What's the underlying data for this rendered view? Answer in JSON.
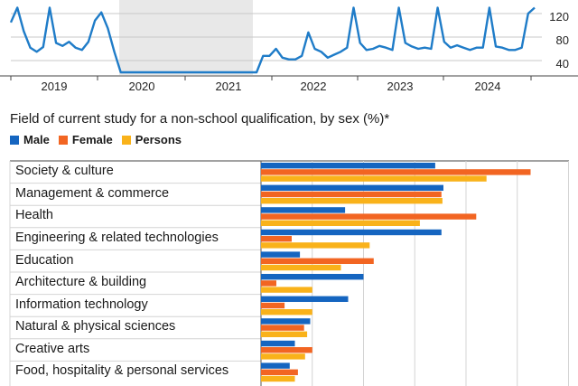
{
  "colors": {
    "male": "#1565c0",
    "female": "#f26522",
    "persons": "#f9b21a",
    "line": "#1f7cc8",
    "shade": "#e8e8e8"
  },
  "chart_data": [
    {
      "type": "line",
      "title": "",
      "x_ticks": [
        "2019",
        "2020",
        "2021",
        "2022",
        "2023",
        "2024"
      ],
      "y_ticks": [
        "40",
        "80",
        "120"
      ],
      "shaded_period": [
        "2020",
        "2021"
      ],
      "series": [
        {
          "values": [
            105,
            130,
            90,
            62,
            55,
            63,
            130,
            70,
            65,
            72,
            62,
            58,
            72,
            108,
            122,
            95,
            55,
            20,
            20,
            20,
            20,
            20,
            20,
            20,
            20,
            20,
            20,
            20,
            20,
            20,
            20,
            20,
            20,
            20,
            20,
            20,
            20,
            20,
            20,
            48,
            48,
            60,
            45,
            42,
            42,
            48,
            88,
            60,
            55,
            45,
            50,
            55,
            62,
            130,
            70,
            58,
            60,
            65,
            62,
            58,
            130,
            70,
            64,
            60,
            62,
            60,
            130,
            72,
            62,
            66,
            62,
            58,
            62,
            62,
            130,
            64,
            62,
            58,
            58,
            62,
            120,
            130
          ]
        }
      ]
    },
    {
      "type": "bar",
      "title": "Field of current study for a non-school qualification, by sex (%)*",
      "legend_placement": "top-left",
      "categories": [
        "Society & culture",
        "Management & commerce",
        "Health",
        "Engineering & related technologies",
        "Education",
        "Architecture & building",
        "Information technology",
        "Natural & physical sciences",
        "Creative arts",
        "Food, hospitality & personal services"
      ],
      "series": [
        {
          "name": "Male",
          "values": [
            17,
            17.8,
            8.2,
            17.6,
            3.8,
            10,
            8.5,
            4.8,
            3.3,
            2.8
          ]
        },
        {
          "name": "Female",
          "values": [
            26.3,
            17.6,
            21,
            3,
            11,
            1.5,
            2.3,
            4.2,
            5,
            3.6
          ]
        },
        {
          "name": "Persons",
          "values": [
            22,
            17.7,
            15.5,
            10.6,
            7.8,
            5,
            5,
            4.5,
            4.3,
            3.3
          ]
        }
      ],
      "grid": true
    }
  ]
}
